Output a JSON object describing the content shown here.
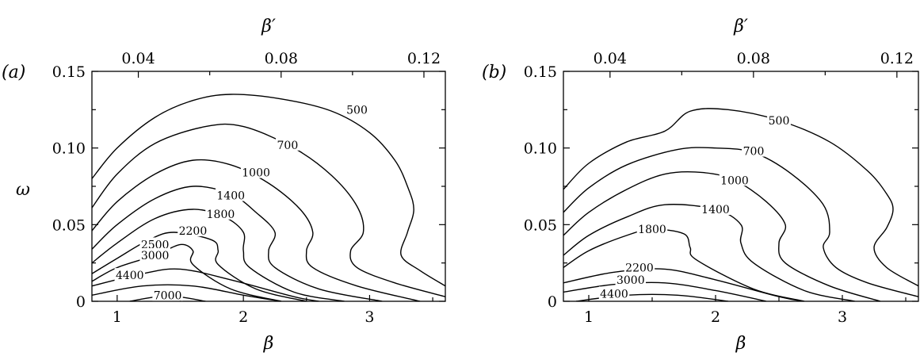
{
  "chart_data": [
    {
      "type": "contour",
      "panel_label": "(a)",
      "xlabel": "β",
      "ylabel": "ω",
      "top_xlabel": "β′",
      "xlim": [
        0.8,
        3.6
      ],
      "ylim": [
        0,
        0.15
      ],
      "top_xlim": [
        0.027,
        0.126
      ],
      "x_ticks": [
        1,
        2,
        3
      ],
      "x_tick_labels": [
        "1",
        "2",
        "3"
      ],
      "y_ticks": [
        0,
        0.05,
        0.1,
        0.15
      ],
      "y_tick_labels": [
        "0",
        "0.05",
        "0.10",
        "0.15"
      ],
      "top_ticks": [
        0.04,
        0.08,
        0.12
      ],
      "top_tick_labels": [
        "0.04",
        "0.08",
        "0.12"
      ],
      "contours": [
        {
          "level": "500",
          "label_at": [
            2.9,
            0.125
          ],
          "points": [
            [
              0.8,
              0.08
            ],
            [
              1.0,
              0.1
            ],
            [
              1.3,
              0.12
            ],
            [
              1.6,
              0.131
            ],
            [
              1.9,
              0.135
            ],
            [
              2.3,
              0.132
            ],
            [
              2.7,
              0.124
            ],
            [
              3.0,
              0.11
            ],
            [
              3.2,
              0.092
            ],
            [
              3.3,
              0.075
            ],
            [
              3.35,
              0.06
            ],
            [
              3.3,
              0.045
            ],
            [
              3.25,
              0.03
            ],
            [
              3.4,
              0.02
            ],
            [
              3.6,
              0.01
            ]
          ]
        },
        {
          "level": "700",
          "label_at": [
            2.35,
            0.102
          ],
          "points": [
            [
              0.8,
              0.061
            ],
            [
              1.0,
              0.083
            ],
            [
              1.3,
              0.103
            ],
            [
              1.7,
              0.114
            ],
            [
              2.0,
              0.114
            ],
            [
              2.4,
              0.1
            ],
            [
              2.7,
              0.082
            ],
            [
              2.9,
              0.062
            ],
            [
              2.95,
              0.045
            ],
            [
              2.85,
              0.033
            ],
            [
              2.9,
              0.022
            ],
            [
              3.2,
              0.012
            ],
            [
              3.6,
              0.003
            ]
          ]
        },
        {
          "level": "1000",
          "label_at": [
            2.1,
            0.084
          ],
          "points": [
            [
              0.8,
              0.046
            ],
            [
              1.0,
              0.065
            ],
            [
              1.3,
              0.083
            ],
            [
              1.6,
              0.092
            ],
            [
              1.9,
              0.089
            ],
            [
              2.2,
              0.077
            ],
            [
              2.45,
              0.06
            ],
            [
              2.55,
              0.045
            ],
            [
              2.5,
              0.033
            ],
            [
              2.55,
              0.022
            ],
            [
              2.9,
              0.01
            ],
            [
              3.4,
              0.0
            ]
          ]
        },
        {
          "level": "1400",
          "label_at": [
            1.9,
            0.069
          ],
          "points": [
            [
              0.8,
              0.034
            ],
            [
              1.0,
              0.05
            ],
            [
              1.3,
              0.067
            ],
            [
              1.6,
              0.075
            ],
            [
              1.9,
              0.07
            ],
            [
              2.1,
              0.058
            ],
            [
              2.25,
              0.045
            ],
            [
              2.2,
              0.033
            ],
            [
              2.25,
              0.022
            ],
            [
              2.6,
              0.008
            ],
            [
              3.1,
              0.0
            ]
          ]
        },
        {
          "level": "1800",
          "label_at": [
            1.82,
            0.057
          ],
          "points": [
            [
              0.8,
              0.025
            ],
            [
              1.0,
              0.038
            ],
            [
              1.3,
              0.054
            ],
            [
              1.6,
              0.06
            ],
            [
              1.85,
              0.055
            ],
            [
              2.0,
              0.045
            ],
            [
              2.0,
              0.033
            ],
            [
              2.05,
              0.022
            ],
            [
              2.4,
              0.006
            ],
            [
              2.8,
              0.0
            ]
          ]
        },
        {
          "level": "2200",
          "label_at": [
            1.6,
            0.046
          ],
          "points": [
            [
              0.8,
              0.018
            ],
            [
              1.0,
              0.028
            ],
            [
              1.25,
              0.04
            ],
            [
              1.45,
              0.045
            ],
            [
              1.75,
              0.04
            ],
            [
              1.8,
              0.033
            ],
            [
              1.8,
              0.024
            ],
            [
              2.1,
              0.008
            ],
            [
              2.5,
              0.0
            ]
          ]
        },
        {
          "level": "2500",
          "label_at": [
            1.3,
            0.037
          ],
          "points": [
            [
              0.8,
              0.013
            ],
            [
              1.0,
              0.022
            ],
            [
              1.3,
              0.03
            ],
            [
              1.5,
              0.037
            ],
            [
              1.6,
              0.033
            ],
            [
              1.6,
              0.024
            ],
            [
              1.9,
              0.008
            ],
            [
              2.3,
              0.0
            ]
          ]
        },
        {
          "level": "3000",
          "label_at": [
            1.3,
            0.03
          ],
          "points": [
            [
              0.8,
              0.01
            ],
            [
              1.2,
              0.018
            ],
            [
              1.5,
              0.021
            ],
            [
              1.9,
              0.014
            ],
            [
              2.4,
              0.003
            ],
            [
              2.6,
              0.0
            ]
          ]
        },
        {
          "level": "4400",
          "label_at": [
            1.1,
            0.017
          ],
          "points": [
            [
              0.8,
              0.004
            ],
            [
              1.2,
              0.01
            ],
            [
              1.6,
              0.01
            ],
            [
              2.0,
              0.004
            ],
            [
              2.3,
              0.0
            ]
          ]
        },
        {
          "level": "7000",
          "label_at": [
            1.4,
            0.004
          ],
          "points": [
            [
              1.1,
              0.0
            ],
            [
              1.4,
              0.0035
            ],
            [
              1.7,
              0.0
            ]
          ]
        }
      ]
    },
    {
      "type": "contour",
      "panel_label": "(b)",
      "xlabel": "β",
      "ylabel": "",
      "top_xlabel": "β′",
      "xlim": [
        0.8,
        3.6
      ],
      "ylim": [
        0,
        0.15
      ],
      "top_xlim": [
        0.027,
        0.126
      ],
      "x_ticks": [
        1,
        2,
        3
      ],
      "x_tick_labels": [
        "1",
        "2",
        "3"
      ],
      "y_ticks": [
        0,
        0.05,
        0.1,
        0.15
      ],
      "y_tick_labels": [
        "0",
        "0.05",
        "0.10",
        "0.15"
      ],
      "top_ticks": [
        0.04,
        0.08,
        0.12
      ],
      "top_tick_labels": [
        "0.04",
        "0.08",
        "0.12"
      ],
      "contours": [
        {
          "level": "500",
          "label_at": [
            2.5,
            0.118
          ],
          "points": [
            [
              0.8,
              0.073
            ],
            [
              1.0,
              0.09
            ],
            [
              1.3,
              0.104
            ],
            [
              1.6,
              0.111
            ],
            [
              1.8,
              0.124
            ],
            [
              2.1,
              0.125
            ],
            [
              2.5,
              0.118
            ],
            [
              2.9,
              0.104
            ],
            [
              3.2,
              0.085
            ],
            [
              3.35,
              0.07
            ],
            [
              3.4,
              0.06
            ],
            [
              3.35,
              0.048
            ],
            [
              3.25,
              0.035
            ],
            [
              3.35,
              0.022
            ],
            [
              3.6,
              0.01
            ]
          ]
        },
        {
          "level": "700",
          "label_at": [
            2.3,
            0.098
          ],
          "points": [
            [
              0.8,
              0.058
            ],
            [
              1.0,
              0.074
            ],
            [
              1.3,
              0.089
            ],
            [
              1.7,
              0.099
            ],
            [
              2.0,
              0.1
            ],
            [
              2.3,
              0.097
            ],
            [
              2.6,
              0.083
            ],
            [
              2.85,
              0.063
            ],
            [
              2.9,
              0.045
            ],
            [
              2.85,
              0.035
            ],
            [
              2.95,
              0.022
            ],
            [
              3.2,
              0.012
            ],
            [
              3.6,
              0.003
            ]
          ]
        },
        {
          "level": "1000",
          "label_at": [
            2.15,
            0.079
          ],
          "points": [
            [
              0.8,
              0.043
            ],
            [
              1.0,
              0.058
            ],
            [
              1.3,
              0.073
            ],
            [
              1.6,
              0.083
            ],
            [
              1.9,
              0.084
            ],
            [
              2.15,
              0.079
            ],
            [
              2.4,
              0.065
            ],
            [
              2.55,
              0.05
            ],
            [
              2.5,
              0.038
            ],
            [
              2.55,
              0.025
            ],
            [
              2.9,
              0.01
            ],
            [
              3.3,
              0.0
            ]
          ]
        },
        {
          "level": "1400",
          "label_at": [
            2.0,
            0.06
          ],
          "points": [
            [
              0.8,
              0.03
            ],
            [
              1.0,
              0.043
            ],
            [
              1.3,
              0.055
            ],
            [
              1.6,
              0.063
            ],
            [
              2.0,
              0.06
            ],
            [
              2.2,
              0.05
            ],
            [
              2.2,
              0.038
            ],
            [
              2.3,
              0.025
            ],
            [
              2.7,
              0.007
            ],
            [
              3.1,
              0.0
            ]
          ]
        },
        {
          "level": "1800",
          "label_at": [
            1.5,
            0.047
          ],
          "points": [
            [
              0.8,
              0.022
            ],
            [
              1.0,
              0.033
            ],
            [
              1.3,
              0.043
            ],
            [
              1.5,
              0.047
            ],
            [
              1.75,
              0.044
            ],
            [
              1.8,
              0.035
            ],
            [
              1.85,
              0.027
            ],
            [
              2.3,
              0.008
            ],
            [
              2.7,
              0.0
            ]
          ]
        },
        {
          "level": "2200",
          "label_at": [
            1.4,
            0.022
          ],
          "points": [
            [
              0.8,
              0.012
            ],
            [
              1.2,
              0.019
            ],
            [
              1.6,
              0.021
            ],
            [
              2.0,
              0.014
            ],
            [
              2.5,
              0.003
            ],
            [
              2.7,
              0.0
            ]
          ]
        },
        {
          "level": "3000",
          "label_at": [
            1.33,
            0.014
          ],
          "points": [
            [
              0.8,
              0.006
            ],
            [
              1.2,
              0.011
            ],
            [
              1.6,
              0.012
            ],
            [
              2.0,
              0.007
            ],
            [
              2.4,
              0.0
            ]
          ]
        },
        {
          "level": "4400",
          "label_at": [
            1.2,
            0.005
          ],
          "points": [
            [
              0.9,
              0.0
            ],
            [
              1.3,
              0.004
            ],
            [
              1.7,
              0.004
            ],
            [
              2.1,
              0.0
            ]
          ]
        }
      ]
    }
  ]
}
